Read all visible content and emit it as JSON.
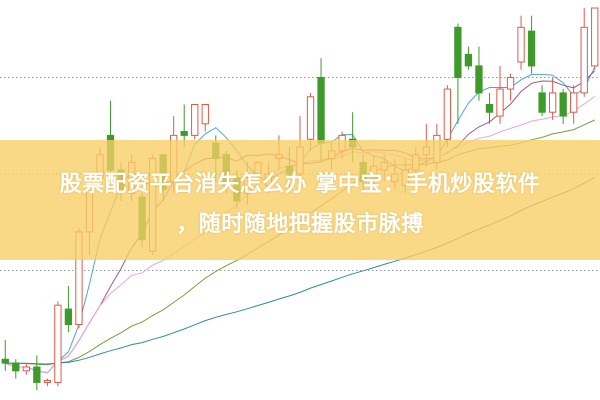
{
  "headline": {
    "line1": "股票配资平台消失怎么办 掌中宝：手机炒股软件",
    "line2": "，随时随地把握股市脉搏"
  },
  "colors": {
    "up": "#e05a4a",
    "down": "#3f9a2c",
    "banner": "#f8ce64",
    "ma": [
      "#4aa8c8",
      "#9a5a8e",
      "#e8a6dc",
      "#7f9c3e",
      "#2f8e9e"
    ],
    "grid": "#9a9a9a"
  },
  "chart_data": {
    "type": "candlestick",
    "title": "",
    "xlabel": "",
    "ylabel": "",
    "ylim": [
      0,
      100
    ],
    "grid": "horizontal dotted",
    "moving_averages": [
      5,
      10,
      20,
      30,
      60
    ],
    "candles": [
      [
        9,
        8,
        14,
        6
      ],
      [
        8,
        6,
        9,
        4
      ],
      [
        6,
        7,
        8,
        5
      ],
      [
        7,
        3,
        10,
        1
      ],
      [
        3,
        3.5,
        4,
        2
      ],
      [
        3,
        23,
        24,
        2
      ],
      [
        22,
        18,
        28,
        16
      ],
      [
        18,
        42,
        43,
        17
      ],
      [
        42,
        56,
        57,
        36
      ],
      [
        56,
        62,
        64,
        54
      ],
      [
        67,
        58,
        76,
        55
      ],
      [
        58,
        53,
        60,
        50
      ],
      [
        52,
        60,
        62,
        50
      ],
      [
        51,
        40,
        52,
        38
      ],
      [
        37,
        61,
        62,
        36
      ],
      [
        62,
        53,
        62,
        50
      ],
      [
        55,
        67,
        72,
        52
      ],
      [
        68,
        67,
        75,
        64
      ],
      [
        67,
        75,
        75,
        66
      ],
      [
        70,
        75,
        75,
        68
      ],
      [
        65,
        61,
        67,
        55
      ],
      [
        62,
        54,
        63,
        52
      ],
      [
        56,
        50,
        58,
        48
      ],
      [
        52,
        56,
        60,
        49
      ],
      [
        57,
        60,
        60,
        55
      ],
      [
        54,
        57,
        60,
        52
      ],
      [
        61,
        62,
        67,
        58
      ],
      [
        59,
        57,
        64,
        52
      ],
      [
        57,
        64,
        72,
        55
      ],
      [
        66,
        77,
        78,
        63
      ],
      [
        82,
        65,
        87,
        60
      ],
      [
        61,
        63,
        65,
        58
      ],
      [
        63,
        67,
        68,
        61
      ],
      [
        66,
        64,
        73,
        60
      ],
      [
        60,
        55,
        62,
        52
      ],
      [
        56,
        59,
        62,
        53
      ],
      [
        58,
        60,
        62,
        55
      ],
      [
        55,
        57,
        61,
        53
      ],
      [
        54,
        58,
        61,
        52
      ],
      [
        58,
        62,
        64,
        55
      ],
      [
        62,
        64,
        70,
        59
      ],
      [
        60,
        67,
        70,
        58
      ],
      [
        66,
        79,
        80,
        64
      ],
      [
        95,
        82,
        96,
        70
      ],
      [
        88,
        85,
        90,
        84
      ],
      [
        85,
        78,
        90,
        76
      ],
      [
        75,
        73,
        78,
        70
      ],
      [
        72,
        79,
        85,
        70
      ],
      [
        79,
        82,
        83,
        76
      ],
      [
        86,
        95,
        98,
        84
      ],
      [
        94,
        85,
        98,
        83
      ],
      [
        78,
        73,
        80,
        72
      ],
      [
        73,
        78,
        82,
        71
      ],
      [
        78,
        72,
        79,
        70
      ],
      [
        73,
        78,
        80,
        70
      ],
      [
        78,
        95,
        100,
        77
      ],
      [
        85,
        100,
        100,
        84
      ]
    ],
    "gridlines": [
      82,
      57,
      32
    ]
  }
}
